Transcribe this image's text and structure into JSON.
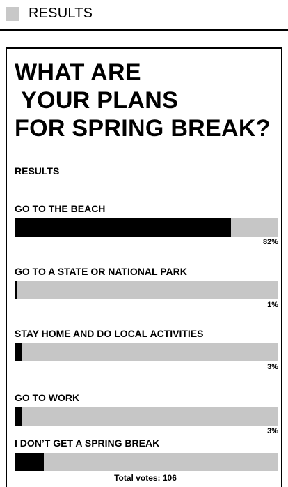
{
  "header": {
    "label": "RESULTS"
  },
  "poll": {
    "title": "WHAT ARE\n YOUR PLANS\nFOR SPRING BREAK?",
    "results_label": "RESULTS",
    "options": [
      {
        "label": "GO TO THE BEACH",
        "percent": 82,
        "percent_label": "82%"
      },
      {
        "label": "GO TO A STATE OR NATIONAL PARK",
        "percent": 1,
        "percent_label": "1%"
      },
      {
        "label": "STAY HOME AND DO LOCAL ACTIVITIES",
        "percent": 3,
        "percent_label": "3%"
      },
      {
        "label": "GO TO WORK",
        "percent": 3,
        "percent_label": "3%"
      },
      {
        "label": "I DON’T GET A SPRING BREAK",
        "percent": 11,
        "percent_label": ""
      }
    ],
    "total_votes": "Total votes: 106"
  },
  "colors": {
    "bar_fill": "#000000",
    "bar_track": "#c6c6c6",
    "header_square": "#c8c8c8"
  }
}
